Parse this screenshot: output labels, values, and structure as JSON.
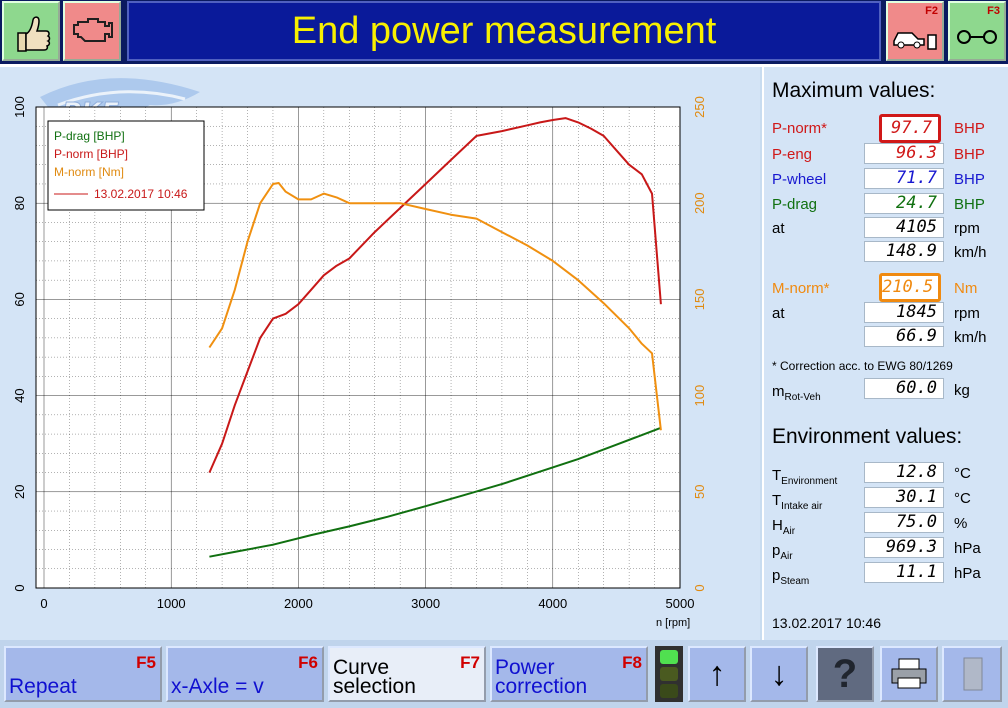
{
  "header": {
    "title": "End power measurement",
    "f2_key": "F2",
    "f3_key": "F3",
    "logo_text": "PKE"
  },
  "maximum": {
    "title": "Maximum values:",
    "rows": [
      {
        "label": "P-norm*",
        "value": "97.7",
        "unit": "BHP",
        "color": "#d01818"
      },
      {
        "label": "P-eng",
        "value": "96.3",
        "unit": "BHP",
        "color": "#d01818"
      },
      {
        "label": "P-wheel",
        "value": "71.7",
        "unit": "BHP",
        "color": "#1818d0"
      },
      {
        "label": "P-drag",
        "value": "24.7",
        "unit": "BHP",
        "color": "#107010"
      },
      {
        "label": "at",
        "value": "4105",
        "unit": "rpm",
        "color": "#000000"
      },
      {
        "label": "",
        "value": "148.9",
        "unit": "km/h",
        "color": "#000000"
      },
      {
        "label": "M-norm*",
        "value": "210.5",
        "unit": "Nm",
        "color": "#f08a10"
      },
      {
        "label": "at",
        "value": "1845",
        "unit": "rpm",
        "color": "#000000"
      },
      {
        "label": "",
        "value": "66.9",
        "unit": "km/h",
        "color": "#000000"
      }
    ],
    "correction_note": "* Correction acc. to EWG 80/1269",
    "m_rot": {
      "label": "m",
      "sub": "Rot-Veh",
      "value": "60.0",
      "unit": "kg"
    }
  },
  "environment": {
    "title": "Environment values:",
    "rows": [
      {
        "label": "T",
        "sub": "Environment",
        "value": "12.8",
        "unit": "°C"
      },
      {
        "label": "T",
        "sub": "Intake air",
        "value": "30.1",
        "unit": "°C"
      },
      {
        "label": "H",
        "sub": "Air",
        "value": "75.0",
        "unit": "%"
      },
      {
        "label": "p",
        "sub": "Air",
        "value": "969.3",
        "unit": "hPa"
      },
      {
        "label": "p",
        "sub": "Steam",
        "value": "11.1",
        "unit": "hPa"
      }
    ],
    "timestamp": "13.02.2017   10:46"
  },
  "chart_data": {
    "type": "line",
    "xlabel": "n [rpm]",
    "xlim": [
      0,
      5000
    ],
    "ylim_left": [
      0,
      100
    ],
    "ylim_right": [
      0,
      250
    ],
    "x_ticks": [
      "0",
      "1000",
      "2000",
      "3000",
      "4000",
      "5000"
    ],
    "y_left_ticks": [
      "0",
      "20",
      "40",
      "60",
      "80",
      "100"
    ],
    "y_right_ticks": [
      "0",
      "50",
      "100",
      "150",
      "200",
      "250"
    ],
    "grid": true,
    "legend_position": "top-left",
    "legend": [
      "P-drag [BHP]",
      "P-norm [BHP]",
      "M-norm [Nm]"
    ],
    "legend_run": "13.02.2017 10:46",
    "series": [
      {
        "name": "P-drag [BHP]",
        "axis": "left",
        "color": "#107010",
        "x": [
          1300,
          1500,
          1800,
          2100,
          2400,
          2700,
          3000,
          3300,
          3600,
          3900,
          4200,
          4500,
          4850
        ],
        "y": [
          6.5,
          7.5,
          9,
          11,
          12.8,
          14.8,
          17,
          19.3,
          21.6,
          24.2,
          26.8,
          29.8,
          33.3
        ]
      },
      {
        "name": "P-norm [BHP]",
        "axis": "left",
        "color": "#c81818",
        "x": [
          1300,
          1400,
          1500,
          1600,
          1700,
          1800,
          1900,
          2000,
          2100,
          2200,
          2300,
          2400,
          2600,
          2800,
          3000,
          3200,
          3400,
          3600,
          3800,
          3900,
          4000,
          4100,
          4200,
          4300,
          4400,
          4500,
          4600,
          4700,
          4780,
          4850
        ],
        "y": [
          24,
          30,
          38,
          45,
          52,
          56,
          57,
          59,
          62,
          65,
          67,
          68.5,
          74,
          79,
          84,
          89,
          94,
          95,
          96.2,
          96.8,
          97.3,
          97.7,
          96.8,
          95.5,
          94,
          91,
          88,
          86,
          82,
          59
        ]
      },
      {
        "name": "M-norm [Nm]",
        "axis": "right",
        "color": "#f09010",
        "x": [
          1300,
          1400,
          1500,
          1600,
          1700,
          1800,
          1845,
          1900,
          2000,
          2100,
          2200,
          2300,
          2400,
          2600,
          2800,
          3000,
          3200,
          3400,
          3600,
          3800,
          4000,
          4200,
          4400,
          4600,
          4700,
          4780,
          4850
        ],
        "y": [
          125,
          135,
          155,
          180,
          200,
          210,
          210.5,
          206,
          202,
          202,
          205,
          203,
          200,
          200,
          200,
          197,
          194,
          192,
          185,
          178,
          170,
          160,
          148,
          135,
          127,
          122,
          82
        ]
      }
    ]
  },
  "footer": {
    "f5_label": "Repeat",
    "f5_key": "F5",
    "f6_label": "x-Axle = v",
    "f6_key": "F6",
    "f7_label_1": "Curve",
    "f7_label_2": "selection",
    "f7_key": "F7",
    "f8_label_1": "Power",
    "f8_label_2": "correction",
    "f8_key": "F8",
    "up_arrow": "↑",
    "down_arrow": "↓",
    "help_mark": "?"
  }
}
